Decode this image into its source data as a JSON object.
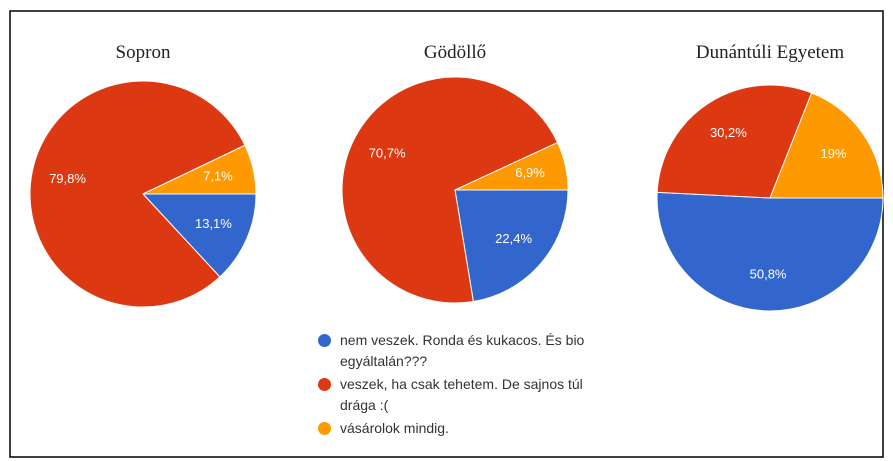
{
  "legend": {
    "labels": [
      "nem veszek. Ronda és kukacos. És bio egyáltalán???",
      "veszek, ha csak tehetem. De sajnos túl drága :(",
      "vásárolok mindig."
    ],
    "colors": [
      "#3366cc",
      "#dc3912",
      "#ff9900"
    ]
  },
  "chart_data": [
    {
      "type": "pie",
      "title": "Sopron",
      "values": [
        13.1,
        79.8,
        7.1
      ],
      "value_labels": [
        "13,1%",
        "79,8%",
        "7,1%"
      ]
    },
    {
      "type": "pie",
      "title": "Gödöllő",
      "values": [
        22.4,
        70.7,
        6.9
      ],
      "value_labels": [
        "22,4%",
        "70,7%",
        "6,9%"
      ]
    },
    {
      "type": "pie",
      "title": "Dunántúli Egyetem",
      "values": [
        50.8,
        30.2,
        19
      ],
      "value_labels": [
        "50,8%",
        "30,2%",
        "19%"
      ]
    }
  ]
}
